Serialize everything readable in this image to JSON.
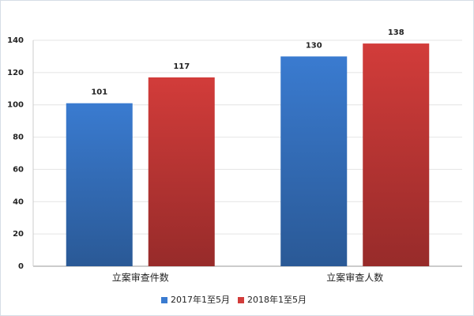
{
  "chart_data": {
    "type": "bar",
    "categories": [
      "立案审查件数",
      "立案审查人数"
    ],
    "series": [
      {
        "name": "2017年1至5月",
        "color": "#3a7bd0",
        "values": [
          101,
          130
        ]
      },
      {
        "name": "2018年1至5月",
        "color": "#d23c3a",
        "values": [
          117,
          138
        ]
      }
    ],
    "ylim": [
      0,
      140
    ],
    "yticks": [
      0,
      20,
      40,
      60,
      80,
      100,
      120,
      140
    ],
    "grid": true,
    "legend": "bottom"
  }
}
